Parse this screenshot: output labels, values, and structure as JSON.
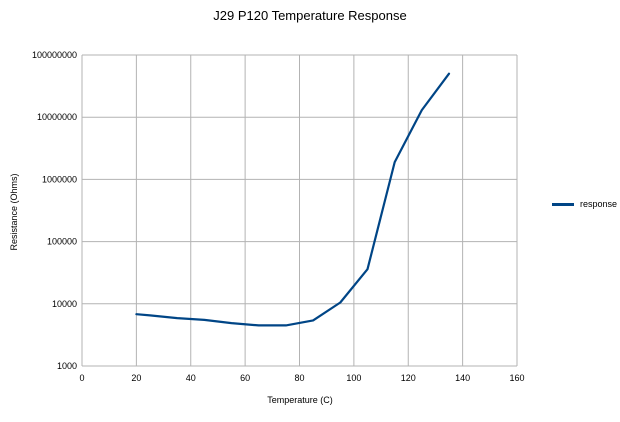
{
  "chart_data": {
    "type": "line",
    "title": "J29 P120 Temperature Response",
    "xlabel": "Temperature (C)",
    "ylabel": "Resistance (Ohms)",
    "x_scale": "linear",
    "y_scale": "log",
    "xlim": [
      0,
      160
    ],
    "ylim": [
      1000,
      100000000
    ],
    "x_ticks": [
      0,
      20,
      40,
      60,
      80,
      100,
      120,
      140,
      160
    ],
    "y_ticks": [
      1000,
      10000,
      100000,
      1000000,
      10000000,
      100000000
    ],
    "x_tick_labels": [
      "0",
      "20",
      "40",
      "60",
      "80",
      "100",
      "120",
      "140",
      "160"
    ],
    "y_tick_labels": [
      "1000",
      "10000",
      "100000",
      "1000000",
      "10000000",
      "100000000"
    ],
    "grid": true,
    "legend_position": "right",
    "series": [
      {
        "name": "response",
        "color": "#004586",
        "x": [
          20,
          25,
          35,
          45,
          55,
          65,
          75,
          85,
          95,
          105,
          115,
          125,
          135
        ],
        "y": [
          6800,
          6500,
          5900,
          5500,
          4900,
          4500,
          4500,
          5400,
          10500,
          36000,
          1900000,
          13000000,
          50000000
        ]
      }
    ]
  }
}
